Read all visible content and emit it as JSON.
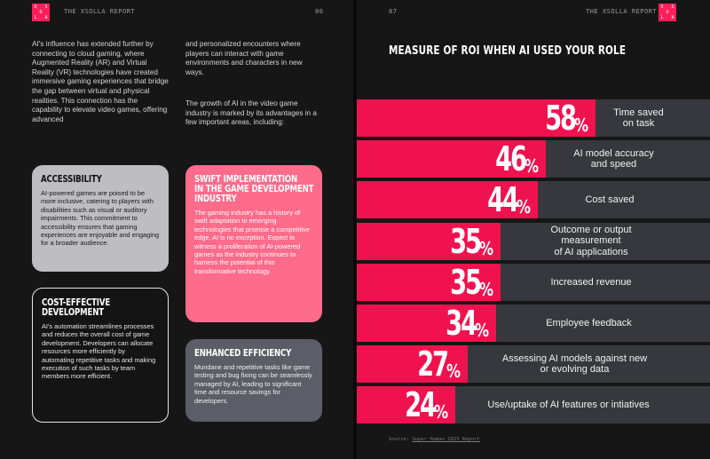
{
  "left_page": {
    "header": "THE XSOLLA REPORT",
    "page_number": "86",
    "intro_col1": "AI's influence has extended further by connecting to cloud gaming, where Augmented Reality (AR) and Virtual Reality (VR) technologies have created immersive gaming experiences that bridge the gap between virtual and physical realities. This connection has the capability to elevate video games, offering advanced",
    "intro_col2a": "and personalized encounters where players can interact with game environments and characters in new ways.",
    "intro_col2b": "The growth of AI in the video game industry is marked by its advantages in a few important areas, including:",
    "cards": [
      {
        "title": "ACCESSIBILITY",
        "text": "AI-powered games are poised to be more inclusive, catering to players with disabilities such as visual or auditory impairments. This commitment to accessibility ensures that gaming experiences are enjoyable and engaging for a broader audience."
      },
      {
        "title_line1": "SWIFT IMPLEMENTATION",
        "title_line2": "IN THE GAME DEVELOPMENT",
        "title_line3": "INDUSTRY",
        "text": "The gaming industry has a history of swift adaptation to emerging technologies that promise a competitive edge. AI is no exception. Expect to witness a proliferation of AI-powered games as the industry continues to harness the potential of this transformative technology."
      },
      {
        "title_line1": "COST-EFFECTIVE",
        "title_line2": "DEVELOPMENT",
        "text": "AI's automation streamlines processes and reduces the overall cost of game development. Developers can allocate resources more efficiently by automating repetitive tasks and making execution of such tasks by team members more efficient."
      },
      {
        "title": "ENHANCED EFFICIENCY",
        "text": "Mundane and repetitive tasks like game testing and bug fixing can be seamlessly managed by AI, leading to significant time and resource savings for developers."
      }
    ]
  },
  "right_page": {
    "header": "THE XSOLLA REPORT",
    "page_number": "87",
    "source_prefix": "Source: ",
    "source_link": "Super Human 2023 Report"
  },
  "logo": {
    "letters": [
      "X",
      "",
      "S",
      "",
      "O",
      "",
      "L",
      "",
      "A"
    ]
  },
  "colors": {
    "accent": "#f0124f",
    "track": "#37383d",
    "card_pink": "#ff6b8b",
    "card_gray": "#bdbdc2",
    "card_slate": "#5c5d66"
  },
  "chart_data": {
    "type": "bar",
    "orientation": "horizontal",
    "title": "MEASURE OF ROI WHEN AI USED YOUR ROLE",
    "unit": "%",
    "xlim": [
      0,
      100
    ],
    "categories": [
      "Time saved on task",
      "AI model accuracy and speed",
      "Cost saved",
      "Outcome or output measurement of AI applications",
      "Increased revenue",
      "Employee feedback",
      "Assessing AI models against new or evolving data",
      "Use/uptake of AI features or intiatives"
    ],
    "values": [
      58,
      46,
      44,
      35,
      35,
      34,
      27,
      24
    ],
    "labels": [
      [
        "Time saved",
        "on task"
      ],
      [
        "AI model accuracy",
        "and speed"
      ],
      [
        "Cost saved"
      ],
      [
        "Outcome or output",
        "measurement",
        "of AI applications"
      ],
      [
        "Increased revenue"
      ],
      [
        "Employee feedback"
      ],
      [
        "Assessing AI models against new",
        "or evolving data"
      ],
      [
        "Use/uptake of AI features or intiatives"
      ]
    ]
  }
}
